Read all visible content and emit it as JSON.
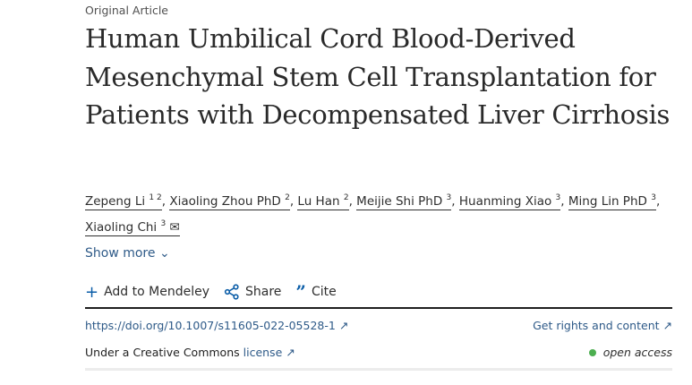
{
  "article_type": "Original Article",
  "title": "Human Umbilical Cord Blood-Derived Mesenchymal Stem Cell Transplantation for Patients with Decompensated Liver Cirrhosis",
  "authors": [
    {
      "name": "Zepeng Li",
      "sup": "1 2"
    },
    {
      "name": "Xiaoling Zhou PhD",
      "sup": "2"
    },
    {
      "name": "Lu Han",
      "sup": "2"
    },
    {
      "name": "Meijie Shi PhD",
      "sup": "3"
    },
    {
      "name": "Huanming Xiao",
      "sup": "3"
    },
    {
      "name": "Ming Lin PhD",
      "sup": "3"
    },
    {
      "name": "Xiaoling Chi",
      "sup": "3",
      "icon": "envelope-icon"
    }
  ],
  "show_more": "Show more",
  "actions": {
    "mendeley": "Add to Mendeley",
    "share": "Share",
    "cite": "Cite"
  },
  "doi": "https://doi.org/10.1007/s11605-022-05528-1",
  "rights": "Get rights and content",
  "license_prefix": "Under a Creative Commons",
  "license_link": "license",
  "open_access": "open access",
  "colors": {
    "link": "#2e5a88",
    "open_access_dot": "#4caf50"
  }
}
